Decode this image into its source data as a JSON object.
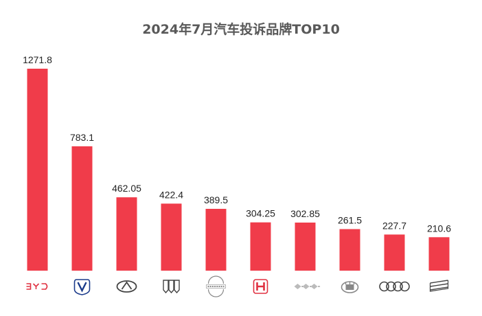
{
  "chart_data": {
    "type": "bar",
    "title": "2024年7月汽车投诉品牌TOP10",
    "categories": [
      "",
      "",
      "",
      "",
      "",
      "",
      "",
      "",
      "",
      ""
    ],
    "logos": [
      "byd-logo",
      "changan-logo",
      "chery-logo",
      "buick-logo",
      "nissan-logo",
      "honda-logo",
      "mitsubishi-logo",
      "greatwall-logo",
      "audi-logo",
      "geely-logo"
    ],
    "values": [
      1271.8,
      783.1,
      462.05,
      422.4,
      389.5,
      304.25,
      302.85,
      261.5,
      227.7,
      210.6
    ],
    "value_labels": [
      "1271.8",
      "783.1",
      "462.05",
      "422.4",
      "389.5",
      "304.25",
      "302.85",
      "261.5",
      "227.7",
      "210.6"
    ],
    "ylim": [
      0,
      1271.8
    ],
    "bar_color": "#f03c4a",
    "grid": false,
    "legend": "none"
  }
}
